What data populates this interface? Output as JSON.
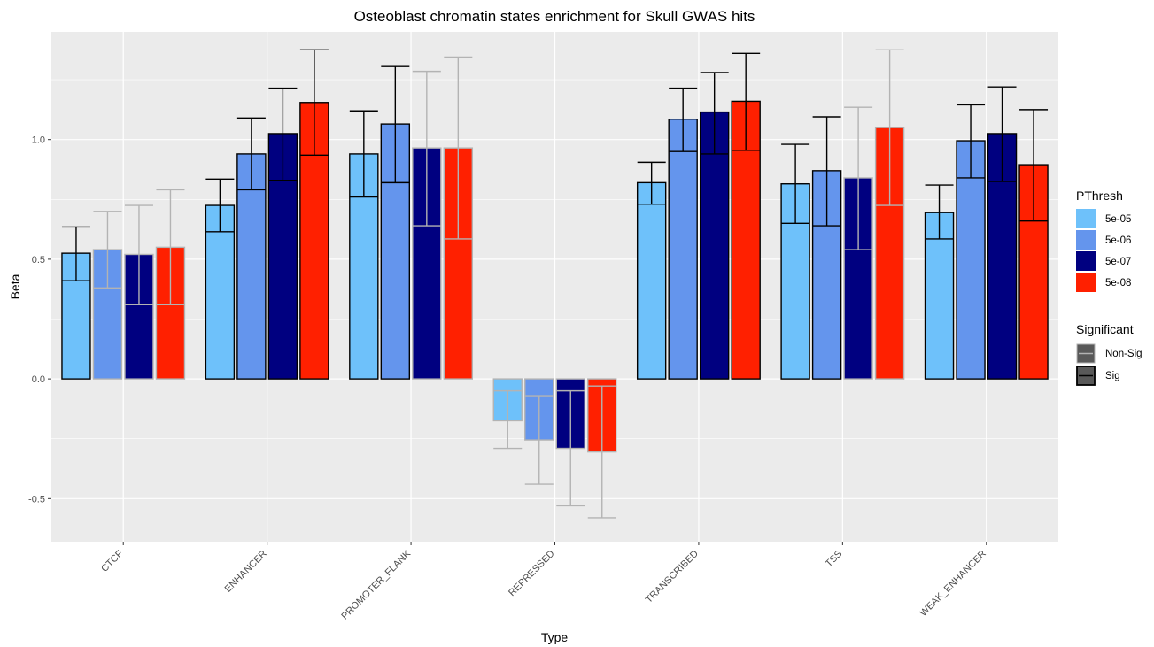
{
  "chart_data": {
    "type": "bar",
    "title": "Osteoblast chromatin states enrichment for Skull GWAS hits",
    "xlabel": "Type",
    "ylabel": "Beta",
    "ylim": [
      -0.68,
      1.45
    ],
    "yticks": [
      -0.5,
      0.0,
      0.5,
      1.0
    ],
    "ytick_labels": [
      "-0.5",
      "0.0",
      "0.5",
      "1.0"
    ],
    "grid": true,
    "legend_position": "right",
    "categories": [
      "CTCF",
      "ENHANCER",
      "PROMOTER_FLANK",
      "REPRESSED",
      "TRANSCRIBED",
      "TSS",
      "WEAK_ENHANCER"
    ],
    "fill_legend": {
      "title": "PThresh",
      "items": [
        {
          "label": "5e-05",
          "color": "#6EC1FA"
        },
        {
          "label": "5e-06",
          "color": "#6495ED"
        },
        {
          "label": "5e-07",
          "color": "#000080"
        },
        {
          "label": "5e-08",
          "color": "#FF2000"
        }
      ]
    },
    "outline_legend": {
      "title": "Significant",
      "items": [
        {
          "label": "Non-Sig",
          "color": "#B3B3B3"
        },
        {
          "label": "Sig",
          "color": "#000000"
        }
      ]
    },
    "series": [
      {
        "name": "5e-05",
        "values": [
          0.525,
          0.725,
          0.94,
          -0.175,
          0.82,
          0.815,
          0.695
        ],
        "err_low": [
          0.41,
          0.615,
          0.76,
          -0.29,
          0.73,
          0.65,
          0.585
        ],
        "err_high": [
          0.635,
          0.835,
          1.12,
          -0.05,
          0.905,
          0.98,
          0.81
        ],
        "significant": [
          "Sig",
          "Sig",
          "Sig",
          "Non-Sig",
          "Sig",
          "Sig",
          "Sig"
        ]
      },
      {
        "name": "5e-06",
        "values": [
          0.54,
          0.94,
          1.065,
          -0.255,
          1.085,
          0.87,
          0.995
        ],
        "err_low": [
          0.38,
          0.79,
          0.82,
          -0.44,
          0.95,
          0.64,
          0.84
        ],
        "err_high": [
          0.7,
          1.09,
          1.305,
          -0.07,
          1.215,
          1.095,
          1.145
        ],
        "significant": [
          "Non-Sig",
          "Sig",
          "Sig",
          "Non-Sig",
          "Sig",
          "Sig",
          "Sig"
        ]
      },
      {
        "name": "5e-07",
        "values": [
          0.52,
          1.025,
          0.965,
          -0.29,
          1.115,
          0.84,
          1.025
        ],
        "err_low": [
          0.31,
          0.83,
          0.64,
          -0.53,
          0.94,
          0.54,
          0.825
        ],
        "err_high": [
          0.725,
          1.215,
          1.285,
          -0.05,
          1.28,
          1.135,
          1.22
        ],
        "significant": [
          "Non-Sig",
          "Sig",
          "Non-Sig",
          "Non-Sig",
          "Sig",
          "Non-Sig",
          "Sig"
        ]
      },
      {
        "name": "5e-08",
        "values": [
          0.55,
          1.155,
          0.965,
          -0.305,
          1.16,
          1.05,
          0.895
        ],
        "err_low": [
          0.31,
          0.935,
          0.585,
          -0.58,
          0.955,
          0.725,
          0.66
        ],
        "err_high": [
          0.79,
          1.375,
          1.345,
          -0.03,
          1.36,
          1.375,
          1.125
        ],
        "significant": [
          "Non-Sig",
          "Sig",
          "Non-Sig",
          "Non-Sig",
          "Sig",
          "Non-Sig",
          "Sig"
        ]
      }
    ]
  }
}
